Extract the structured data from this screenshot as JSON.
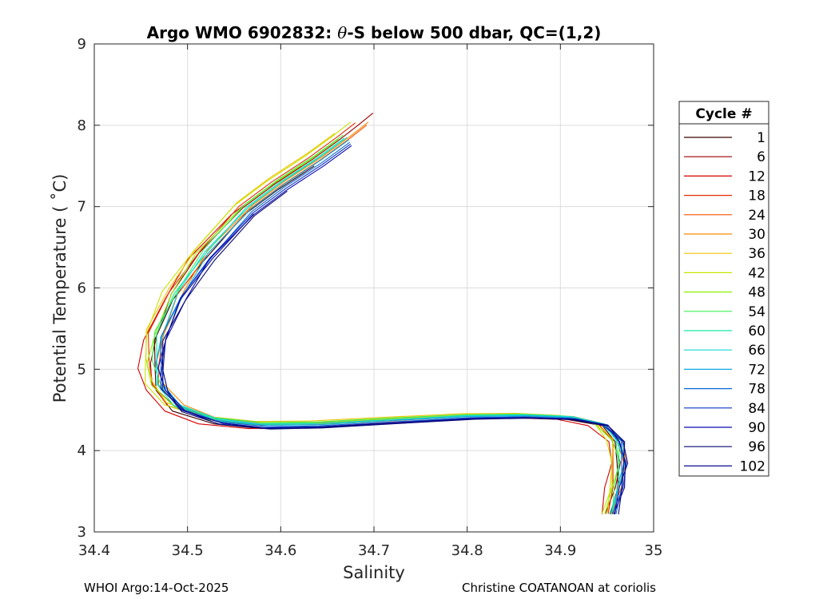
{
  "footer": {
    "left": "WHOI Argo:14-Oct-2025",
    "right": "Christine COATANOAN at coriolis"
  },
  "chart_data": {
    "type": "line",
    "title_parts": [
      "Argo WMO 6902832: ",
      "θ",
      "-S below 500 dbar,  QC=(1,2)"
    ],
    "xlabel": "Salinity",
    "ylabel": "Potential Temperature ( ˚C)",
    "xlim": [
      34.4,
      35.0
    ],
    "ylim": [
      3,
      9
    ],
    "xticks": [
      34.4,
      34.5,
      34.6,
      34.7,
      34.8,
      34.9,
      35.0
    ],
    "xtick_labels": [
      "34.4",
      "34.5",
      "34.6",
      "34.7",
      "34.8",
      "34.9",
      "35"
    ],
    "yticks": [
      3,
      4,
      5,
      6,
      7,
      8,
      9
    ],
    "ytick_labels": [
      "3",
      "4",
      "5",
      "6",
      "7",
      "8",
      "9"
    ],
    "grid": true,
    "legend": {
      "title": "Cycle #",
      "placement": "outside-right",
      "entries": [
        {
          "label": "1",
          "color": "#3a0000"
        },
        {
          "label": "6",
          "color": "#9a0000"
        },
        {
          "label": "12",
          "color": "#d60000"
        },
        {
          "label": "18",
          "color": "#e52a00"
        },
        {
          "label": "24",
          "color": "#f25000"
        },
        {
          "label": "30",
          "color": "#f58a00"
        },
        {
          "label": "36",
          "color": "#f0c400"
        },
        {
          "label": "42",
          "color": "#c8e400"
        },
        {
          "label": "48",
          "color": "#8cf000"
        },
        {
          "label": "54",
          "color": "#3cf050"
        },
        {
          "label": "60",
          "color": "#16e6a0"
        },
        {
          "label": "66",
          "color": "#14d8dc"
        },
        {
          "label": "72",
          "color": "#0fa8e6"
        },
        {
          "label": "78",
          "color": "#0a68d6"
        },
        {
          "label": "84",
          "color": "#0a32c8"
        },
        {
          "label": "90",
          "color": "#0a0ab4"
        },
        {
          "label": "96",
          "color": "#080870"
        },
        {
          "label": "102",
          "color": "#0a0a90"
        }
      ]
    },
    "base_profile": {
      "S": [
        34.565,
        34.52,
        34.49,
        34.47,
        34.466,
        34.47,
        34.49,
        34.53,
        34.58,
        34.64,
        34.72,
        34.8,
        34.86,
        34.91,
        34.945,
        34.962,
        34.966,
        34.962,
        34.955
      ],
      "T": [
        6.95,
        6.4,
        5.9,
        5.4,
        5.05,
        4.78,
        4.52,
        4.36,
        4.3,
        4.31,
        4.36,
        4.41,
        4.42,
        4.4,
        4.32,
        4.12,
        3.85,
        3.55,
        3.22
      ]
    },
    "upper_profile": {
      "S": [
        34.565,
        34.6,
        34.64,
        34.67,
        34.69,
        34.705
      ],
      "T": [
        6.95,
        7.25,
        7.55,
        7.8,
        7.98,
        8.12
      ]
    },
    "series": [
      {
        "label": "1",
        "ds": -0.004,
        "dt": -0.05,
        "top": 7.6
      },
      {
        "label": "6",
        "ds": -0.006,
        "dt": 0.03,
        "top": 8.17
      },
      {
        "label": "12",
        "ds": -0.018,
        "dt": -0.05,
        "top": 7.7
      },
      {
        "label": "18",
        "ds": -0.01,
        "dt": 0.05,
        "top": 8.1
      },
      {
        "label": "24",
        "ds": 0.002,
        "dt": 0.02,
        "top": 8.0
      },
      {
        "label": "30",
        "ds": 0.004,
        "dt": 0.06,
        "top": 8.05
      },
      {
        "label": "36",
        "ds": -0.012,
        "dt": 0.1,
        "top": 8.05
      },
      {
        "label": "42",
        "ds": -0.015,
        "dt": 0.06,
        "top": 8.15
      },
      {
        "label": "48",
        "ds": -0.008,
        "dt": 0.03,
        "top": 8.0
      },
      {
        "label": "54",
        "ds": -0.003,
        "dt": 0.08,
        "top": 8.0
      },
      {
        "label": "60",
        "ds": -0.002,
        "dt": 0.04,
        "top": 7.95
      },
      {
        "label": "66",
        "ds": 0.001,
        "dt": 0.05,
        "top": 7.9
      },
      {
        "label": "72",
        "ds": 0.003,
        "dt": 0.02,
        "top": 7.9
      },
      {
        "label": "78",
        "ds": 0.004,
        "dt": -0.01,
        "top": 7.85
      },
      {
        "label": "84",
        "ds": 0.005,
        "dt": -0.03,
        "top": 7.8
      },
      {
        "label": "90",
        "ds": 0.006,
        "dt": -0.05,
        "top": 7.8
      },
      {
        "label": "96",
        "ds": 0.007,
        "dt": -0.06,
        "top": 7.4
      },
      {
        "label": "102",
        "ds": 0.006,
        "dt": -0.04,
        "top": 7.0
      }
    ]
  }
}
